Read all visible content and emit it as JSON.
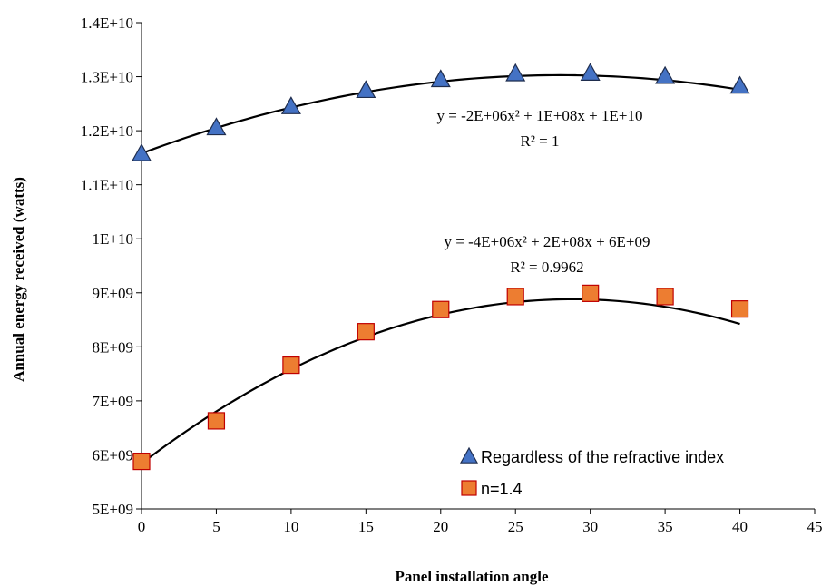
{
  "chart_data": {
    "type": "scatter",
    "xlabel": "Panel installation angle",
    "ylabel": "Annual energy received (watts)",
    "xlim": [
      0,
      45
    ],
    "ylim": [
      5000000000,
      14000000000
    ],
    "x_ticks": [
      0,
      5,
      10,
      15,
      20,
      25,
      30,
      35,
      40,
      45
    ],
    "x_tick_labels": [
      "0",
      "5",
      "10",
      "15",
      "20",
      "25",
      "30",
      "35",
      "40",
      "45"
    ],
    "y_ticks": [
      5000000000,
      6000000000,
      7000000000,
      8000000000,
      9000000000,
      10000000000,
      11000000000,
      12000000000,
      13000000000,
      14000000000
    ],
    "y_tick_labels": [
      "5E+09",
      "6E+09",
      "7E+09",
      "8E+09",
      "9E+09",
      "1E+10",
      "1.1E+10",
      "1.2E+10",
      "1.3E+10",
      "1.4E+10"
    ],
    "grid": false,
    "legend_position": "bottom-right",
    "series": [
      {
        "name": "Regardless of the refractive index",
        "marker": "triangle",
        "color": "#4472C4",
        "x": [
          0,
          5,
          10,
          15,
          20,
          25,
          30,
          35,
          40
        ],
        "y": [
          11580000000,
          12060000000,
          12450000000,
          12750000000,
          12950000000,
          13060000000,
          13070000000,
          13010000000,
          12830000000
        ],
        "trendline": {
          "type": "polynomial-2",
          "equation": "y = -2E+06x² + 1E+08x + 1E+10",
          "r2": "R² = 1",
          "coefficients": [
            -1850000,
            103500000,
            11580000000
          ]
        }
      },
      {
        "name": "n=1.4",
        "marker": "square",
        "color": "#ED7D31",
        "x": [
          0,
          5,
          10,
          15,
          20,
          25,
          30,
          35,
          40
        ],
        "y": [
          5880000000,
          6630000000,
          7660000000,
          8280000000,
          8690000000,
          8930000000,
          8990000000,
          8930000000,
          8700000000
        ],
        "trendline": {
          "type": "polynomial-2",
          "equation": "y = -4E+06x² + 2E+08x + 6E+09",
          "r2": "R² = 0.9962",
          "coefficients": [
            -3660000,
            211000000,
            5840000000
          ]
        }
      }
    ]
  }
}
